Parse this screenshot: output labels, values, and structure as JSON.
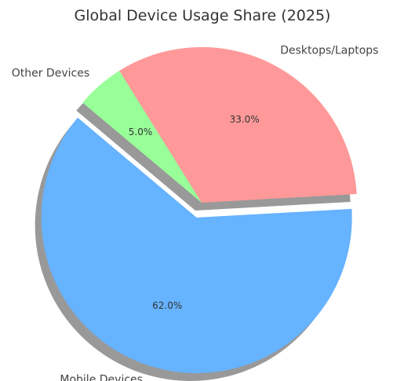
{
  "chart_data": {
    "type": "pie",
    "title": "Global Device Usage Share (2025)",
    "slices": [
      {
        "label": "Mobile Devices",
        "value": 62.0,
        "display": "62.0%",
        "color": "#66b3ff",
        "exploded": true
      },
      {
        "label": "Desktops/Laptops",
        "value": 33.0,
        "display": "33.0%",
        "color": "#ff9999",
        "exploded": false
      },
      {
        "label": "Other Devices",
        "value": 5.0,
        "display": "5.0%",
        "color": "#99ff99",
        "exploded": false
      }
    ],
    "shadow": true,
    "legend": "none"
  }
}
